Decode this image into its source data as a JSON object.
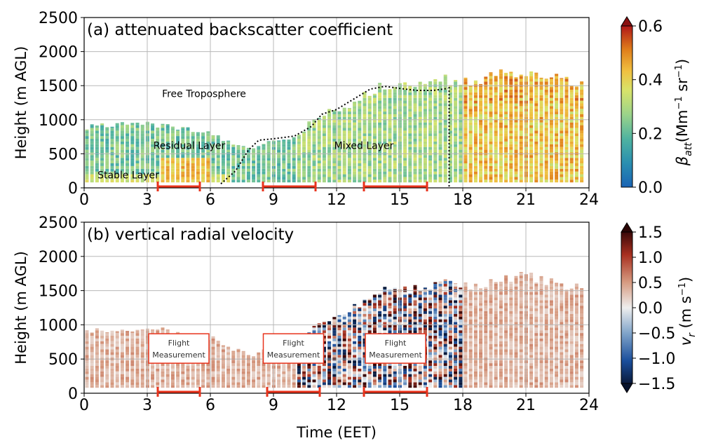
{
  "chart_data": [
    {
      "type": "heatmap",
      "title": "(a) attenuated backscatter coefficient",
      "xlabel": "",
      "ylabel": "Height (m AGL)",
      "xlim": [
        0,
        24
      ],
      "ylim": [
        0,
        2500
      ],
      "xticks": [
        "0",
        "3",
        "6",
        "9",
        "12",
        "15",
        "18",
        "21",
        "24"
      ],
      "yticks": [
        "0",
        "500",
        "1000",
        "1500",
        "2000",
        "2500"
      ],
      "grid": true,
      "colorbar": {
        "label_symbol": "β",
        "label_sub": "att",
        "label_units": "(Mm",
        "label_exp1": "−1",
        "label_mid": " sr",
        "label_exp2": "−1",
        "label_end": ")",
        "ticks": [
          "0.0",
          "0.2",
          "0.4",
          "0.6"
        ],
        "range": [
          0.0,
          0.6
        ],
        "colormap": "yellow-green-blue",
        "extend": "max"
      },
      "annotations": [
        {
          "text": "Free Troposphere",
          "x": 5.7,
          "y": 1330
        },
        {
          "text": "Residual Layer",
          "x": 5.0,
          "y": 570
        },
        {
          "text": "Mixed Layer",
          "x": 13.3,
          "y": 570
        },
        {
          "text": "Stable Layer",
          "x": 2.1,
          "y": 140
        }
      ],
      "layer_top_dotted": {
        "x": [
          6.5,
          7.2,
          7.8,
          8.3,
          9.0,
          10.0,
          10.8,
          11.3,
          12.0,
          12.8,
          13.6,
          14.3,
          15.0,
          15.8,
          16.6,
          17.3
        ],
        "y": [
          60,
          250,
          550,
          700,
          720,
          760,
          900,
          1080,
          1150,
          1300,
          1450,
          1490,
          1460,
          1430,
          1430,
          1460
        ]
      },
      "sunset_line_x": 17.35,
      "flight_measurements": [
        [
          3.5,
          5.5
        ],
        [
          8.5,
          11.0
        ],
        [
          13.3,
          16.3
        ]
      ]
    },
    {
      "type": "heatmap",
      "title": "(b) vertical radial velocity",
      "xlabel": "Time (EET)",
      "ylabel": "Height (m AGL)",
      "xlim": [
        0,
        24
      ],
      "ylim": [
        0,
        2500
      ],
      "xticks": [
        "0",
        "3",
        "6",
        "9",
        "12",
        "15",
        "18",
        "21",
        "24"
      ],
      "yticks": [
        "0",
        "500",
        "1000",
        "1500",
        "2000",
        "2500"
      ],
      "grid": true,
      "colorbar": {
        "label_symbol": "v",
        "label_sub": "r",
        "label_units": " (m s",
        "label_exp": "−1",
        "label_end": ")",
        "ticks": [
          "−1.5",
          "−1.0",
          "−0.5",
          "0.0",
          "0.5",
          "1.0",
          "1.5"
        ],
        "range": [
          -1.5,
          1.5
        ],
        "colormap": "blue-white-red",
        "extend": "both"
      },
      "flight_box_label_line1": "Flight",
      "flight_box_label_line2": "Measurement",
      "flight_measurements": [
        [
          3.5,
          5.5
        ],
        [
          8.7,
          11.2
        ],
        [
          13.3,
          16.3
        ]
      ]
    }
  ]
}
